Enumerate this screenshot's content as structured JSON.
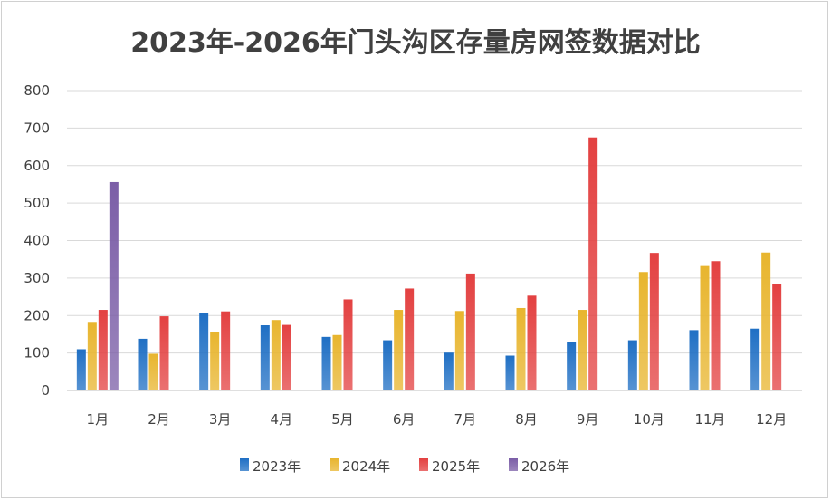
{
  "chart_data": {
    "type": "bar",
    "title": "2023年-2026年门头沟区存量房网签数据对比",
    "categories": [
      "1月",
      "2月",
      "3月",
      "4月",
      "5月",
      "6月",
      "7月",
      "8月",
      "9月",
      "10月",
      "11月",
      "12月"
    ],
    "series": [
      {
        "name": "2023年",
        "color": "#1f6fc4",
        "values": [
          110,
          138,
          206,
          174,
          143,
          134,
          101,
          93,
          130,
          134,
          161,
          165
        ]
      },
      {
        "name": "2024年",
        "color": "#e8b52e",
        "values": [
          183,
          98,
          157,
          188,
          148,
          215,
          212,
          220,
          215,
          316,
          332,
          368
        ]
      },
      {
        "name": "2025年",
        "color": "#e34141",
        "values": [
          215,
          198,
          211,
          175,
          243,
          272,
          312,
          253,
          675,
          367,
          345,
          285
        ]
      },
      {
        "name": "2026年",
        "color": "#7b5ea7",
        "values": [
          556,
          null,
          null,
          null,
          null,
          null,
          null,
          null,
          null,
          null,
          null,
          null
        ]
      }
    ],
    "ylim": [
      0,
      800
    ],
    "yticks": [
      0,
      100,
      200,
      300,
      400,
      500,
      600,
      700,
      800
    ],
    "grid": true,
    "legend_position": "bottom"
  }
}
